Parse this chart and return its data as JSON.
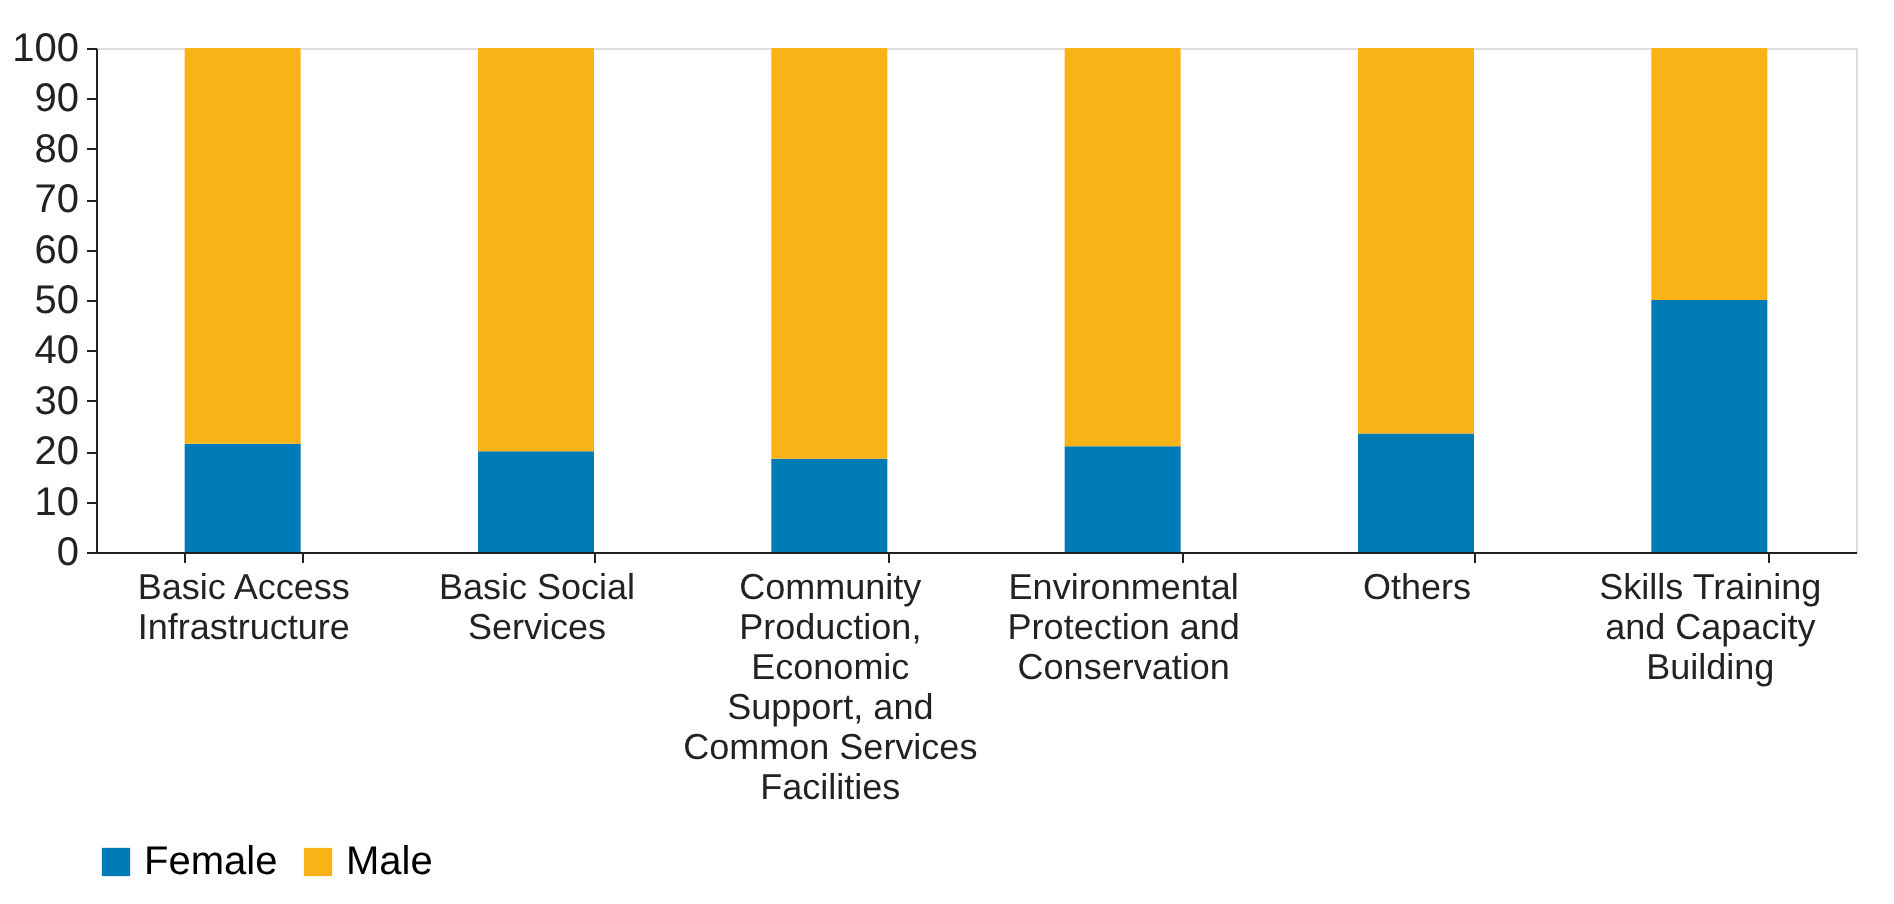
{
  "chart_data": {
    "type": "bar",
    "stacked": true,
    "categories": [
      "Basic Access Infrastructure",
      "Basic Social Services",
      "Community Production, Economic Support, and Common Services Facilities",
      "Environmental Protection and Conservation",
      "Others",
      "Skills Training and Capacity Building"
    ],
    "series": [
      {
        "name": "Female",
        "color": "#007bb6",
        "values": [
          21.5,
          20,
          18.5,
          21,
          23.5,
          50
        ]
      },
      {
        "name": "Male",
        "color": "#fab317",
        "values": [
          78.5,
          80,
          81.5,
          79,
          76.5,
          50
        ]
      }
    ],
    "ylim": [
      0,
      100
    ],
    "yticks": [
      0,
      10,
      20,
      30,
      40,
      50,
      60,
      70,
      80,
      90,
      100
    ],
    "grid": false,
    "legend": "bottom"
  }
}
